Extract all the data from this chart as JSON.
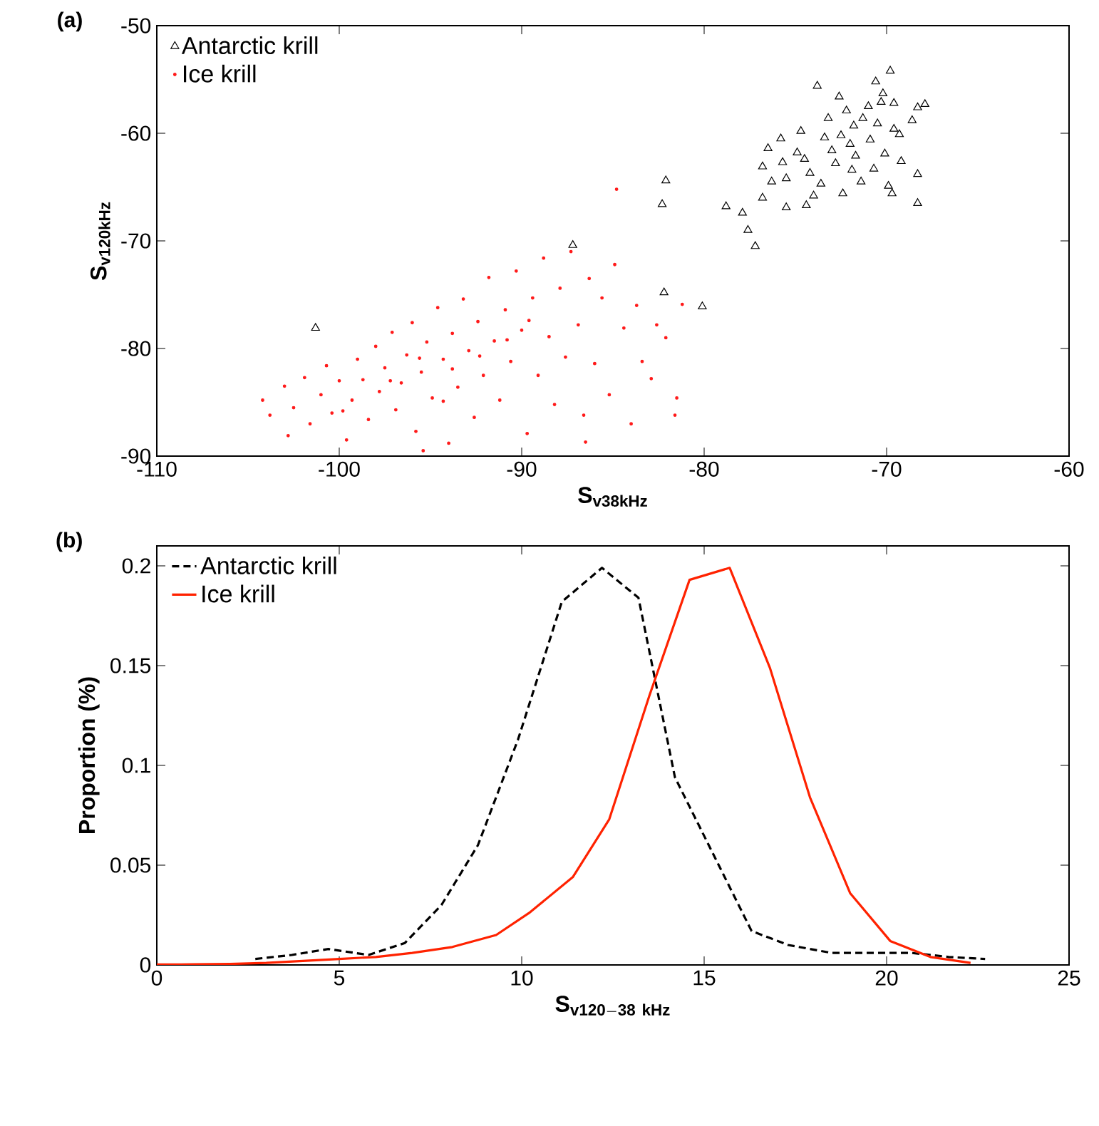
{
  "chart_data": [
    {
      "type": "scatter",
      "title": "(a)",
      "xlabel": "\\mathbf{S}_{\\mathbf{v38kHz}}",
      "ylabel": "\\mathbf{S}_{\\mathbf{v120kHz}}",
      "xlim": [
        -110,
        -60
      ],
      "ylim": [
        -90,
        -50
      ],
      "xticks": [
        -110,
        -100,
        -90,
        -80,
        -70,
        -60
      ],
      "yticks": [
        -90,
        -80,
        -70,
        -60,
        -50
      ],
      "legend": "top left",
      "series": [
        {
          "name": "Antarctic krill",
          "color": "#000000",
          "marker": "triangle",
          "x": [
            -101.3,
            -87.2,
            -82.1,
            -82.3,
            -82.2,
            -80.1,
            -78.8,
            -77.9,
            -77.6,
            -77.2,
            -76.8,
            -76.3,
            -76.8,
            -75.5,
            -75.5,
            -74.7,
            -75.7,
            -74.9,
            -74.4,
            -73.8,
            -72.4,
            -73.2,
            -72.8,
            -71.8,
            -71.4,
            -70.6,
            -69.8,
            -69.6,
            -69.3,
            -68.6,
            -68.3,
            -67.9,
            -69.7,
            -69.9,
            -68.3,
            -68.3,
            -70.9,
            -71.3,
            -72.0,
            -73.0,
            -72.5,
            -71.7,
            -70.5,
            -70.1,
            -74.2,
            -73.6,
            -71.0,
            -72.2,
            -70.3,
            -69.2,
            -74.5,
            -73.4,
            -71.9,
            -70.7,
            -75.8,
            -72.6,
            -69.6,
            -70.2,
            -76.5,
            -74.0
          ],
          "values": [
            -78.1,
            -70.4,
            -64.4,
            -66.6,
            -74.8,
            -76.1,
            -66.8,
            -67.4,
            -69.0,
            -70.5,
            -66.0,
            -64.5,
            -63.1,
            -66.9,
            -64.2,
            -59.8,
            -62.7,
            -61.8,
            -66.7,
            -55.6,
            -65.6,
            -58.6,
            -62.8,
            -59.3,
            -64.5,
            -55.2,
            -54.2,
            -57.2,
            -60.1,
            -58.8,
            -57.6,
            -57.3,
            -65.6,
            -64.9,
            -66.5,
            -63.8,
            -60.6,
            -58.6,
            -61.0,
            -61.6,
            -60.2,
            -62.1,
            -59.1,
            -61.9,
            -63.7,
            -64.7,
            -57.5,
            -57.9,
            -57.1,
            -62.6,
            -62.4,
            -60.4,
            -63.4,
            -63.3,
            -60.5,
            -56.6,
            -59.6,
            -56.3,
            -61.4,
            -65.8
          ]
        },
        {
          "name": "Ice krill",
          "color": "#ff1a1a",
          "marker": "circle",
          "x": [
            -104.2,
            -103.8,
            -103.0,
            -102.8,
            -102.5,
            -101.9,
            -101.6,
            -101.0,
            -100.7,
            -100.4,
            -100.0,
            -99.6,
            -99.3,
            -99.0,
            -98.7,
            -98.4,
            -98.0,
            -97.8,
            -97.5,
            -97.1,
            -96.9,
            -96.6,
            -96.3,
            -96.0,
            -95.8,
            -95.5,
            -95.2,
            -94.9,
            -94.6,
            -94.3,
            -94.0,
            -93.8,
            -93.5,
            -93.2,
            -92.9,
            -92.6,
            -92.4,
            -92.1,
            -91.8,
            -91.5,
            -91.2,
            -90.9,
            -90.6,
            -90.3,
            -90.0,
            -89.7,
            -89.4,
            -89.1,
            -88.8,
            -88.5,
            -88.2,
            -87.9,
            -87.6,
            -87.3,
            -86.9,
            -86.6,
            -86.3,
            -86.0,
            -85.6,
            -85.2,
            -84.9,
            -84.4,
            -84.0,
            -83.7,
            -83.4,
            -82.9,
            -82.6,
            -82.1,
            -81.6,
            -81.2,
            -81.5,
            -84.8,
            -86.5,
            -95.4,
            -93.8,
            -95.6,
            -97.2,
            -92.3,
            -90.8,
            -89.6,
            -94.3,
            -99.8
          ],
          "values": [
            -84.8,
            -86.2,
            -83.5,
            -88.1,
            -85.5,
            -82.7,
            -87.0,
            -84.3,
            -81.6,
            -86.0,
            -83.0,
            -88.5,
            -84.8,
            -81.0,
            -82.9,
            -86.6,
            -79.8,
            -84.0,
            -81.8,
            -78.5,
            -85.7,
            -83.2,
            -80.6,
            -77.6,
            -87.7,
            -82.2,
            -79.4,
            -84.6,
            -76.2,
            -81.0,
            -88.8,
            -78.6,
            -83.6,
            -75.4,
            -80.2,
            -86.4,
            -77.5,
            -82.5,
            -73.4,
            -79.3,
            -84.8,
            -76.4,
            -81.2,
            -72.8,
            -78.3,
            -87.9,
            -75.3,
            -82.5,
            -71.6,
            -78.9,
            -85.2,
            -74.4,
            -80.8,
            -71.0,
            -77.8,
            -86.2,
            -73.5,
            -81.4,
            -75.3,
            -84.3,
            -72.2,
            -78.1,
            -87.0,
            -76.0,
            -81.2,
            -82.8,
            -77.8,
            -79.0,
            -86.2,
            -75.9,
            -84.6,
            -65.2,
            -88.7,
            -89.5,
            -81.9,
            -80.9,
            -83.0,
            -80.7,
            -79.2,
            -77.4,
            -84.9,
            -85.8
          ]
        }
      ]
    },
    {
      "type": "line",
      "title": "(b)",
      "xlabel": "\\mathbf{S}_{\\mathbf{v120-38\\ kHz}}",
      "ylabel": "Proportion (%)",
      "xlim": [
        0,
        25
      ],
      "ylim": [
        0,
        0.21
      ],
      "xticks": [
        0,
        5,
        10,
        15,
        20,
        25
      ],
      "yticks": [
        0,
        0.05,
        0.1,
        0.15,
        0.2
      ],
      "legend": "top left",
      "marker": "none",
      "series": [
        {
          "name": "Antarctic krill",
          "color": "#000000",
          "line_style": "dashed",
          "x": [
            2.7,
            3.7,
            4.7,
            5.8,
            6.8,
            7.8,
            8.8,
            9.9,
            11.1,
            12.2,
            13.2,
            14.2,
            15.4,
            16.3,
            17.3,
            18.5,
            19.7,
            20.7,
            21.7,
            22.7
          ],
          "values": [
            0.003,
            0.005,
            0.008,
            0.005,
            0.011,
            0.03,
            0.06,
            0.113,
            0.182,
            0.199,
            0.184,
            0.094,
            0.05,
            0.017,
            0.01,
            0.006,
            0.006,
            0.006,
            0.004,
            0.003
          ]
        },
        {
          "name": "Ice krill",
          "color": "#ff2200",
          "line_style": "solid",
          "x": [
            0,
            1,
            2,
            3,
            4,
            5,
            6,
            7,
            8.1,
            9.3,
            10.2,
            11.4,
            12.4,
            13.5,
            14.6,
            15.7,
            16.8,
            17.9,
            19.0,
            20.1,
            21.2,
            22.3
          ],
          "values": [
            0.0002,
            0.0003,
            0.0005,
            0.001,
            0.002,
            0.003,
            0.004,
            0.006,
            0.009,
            0.015,
            0.026,
            0.044,
            0.073,
            0.135,
            0.193,
            0.199,
            0.149,
            0.084,
            0.036,
            0.012,
            0.004,
            0.001
          ]
        }
      ]
    }
  ]
}
